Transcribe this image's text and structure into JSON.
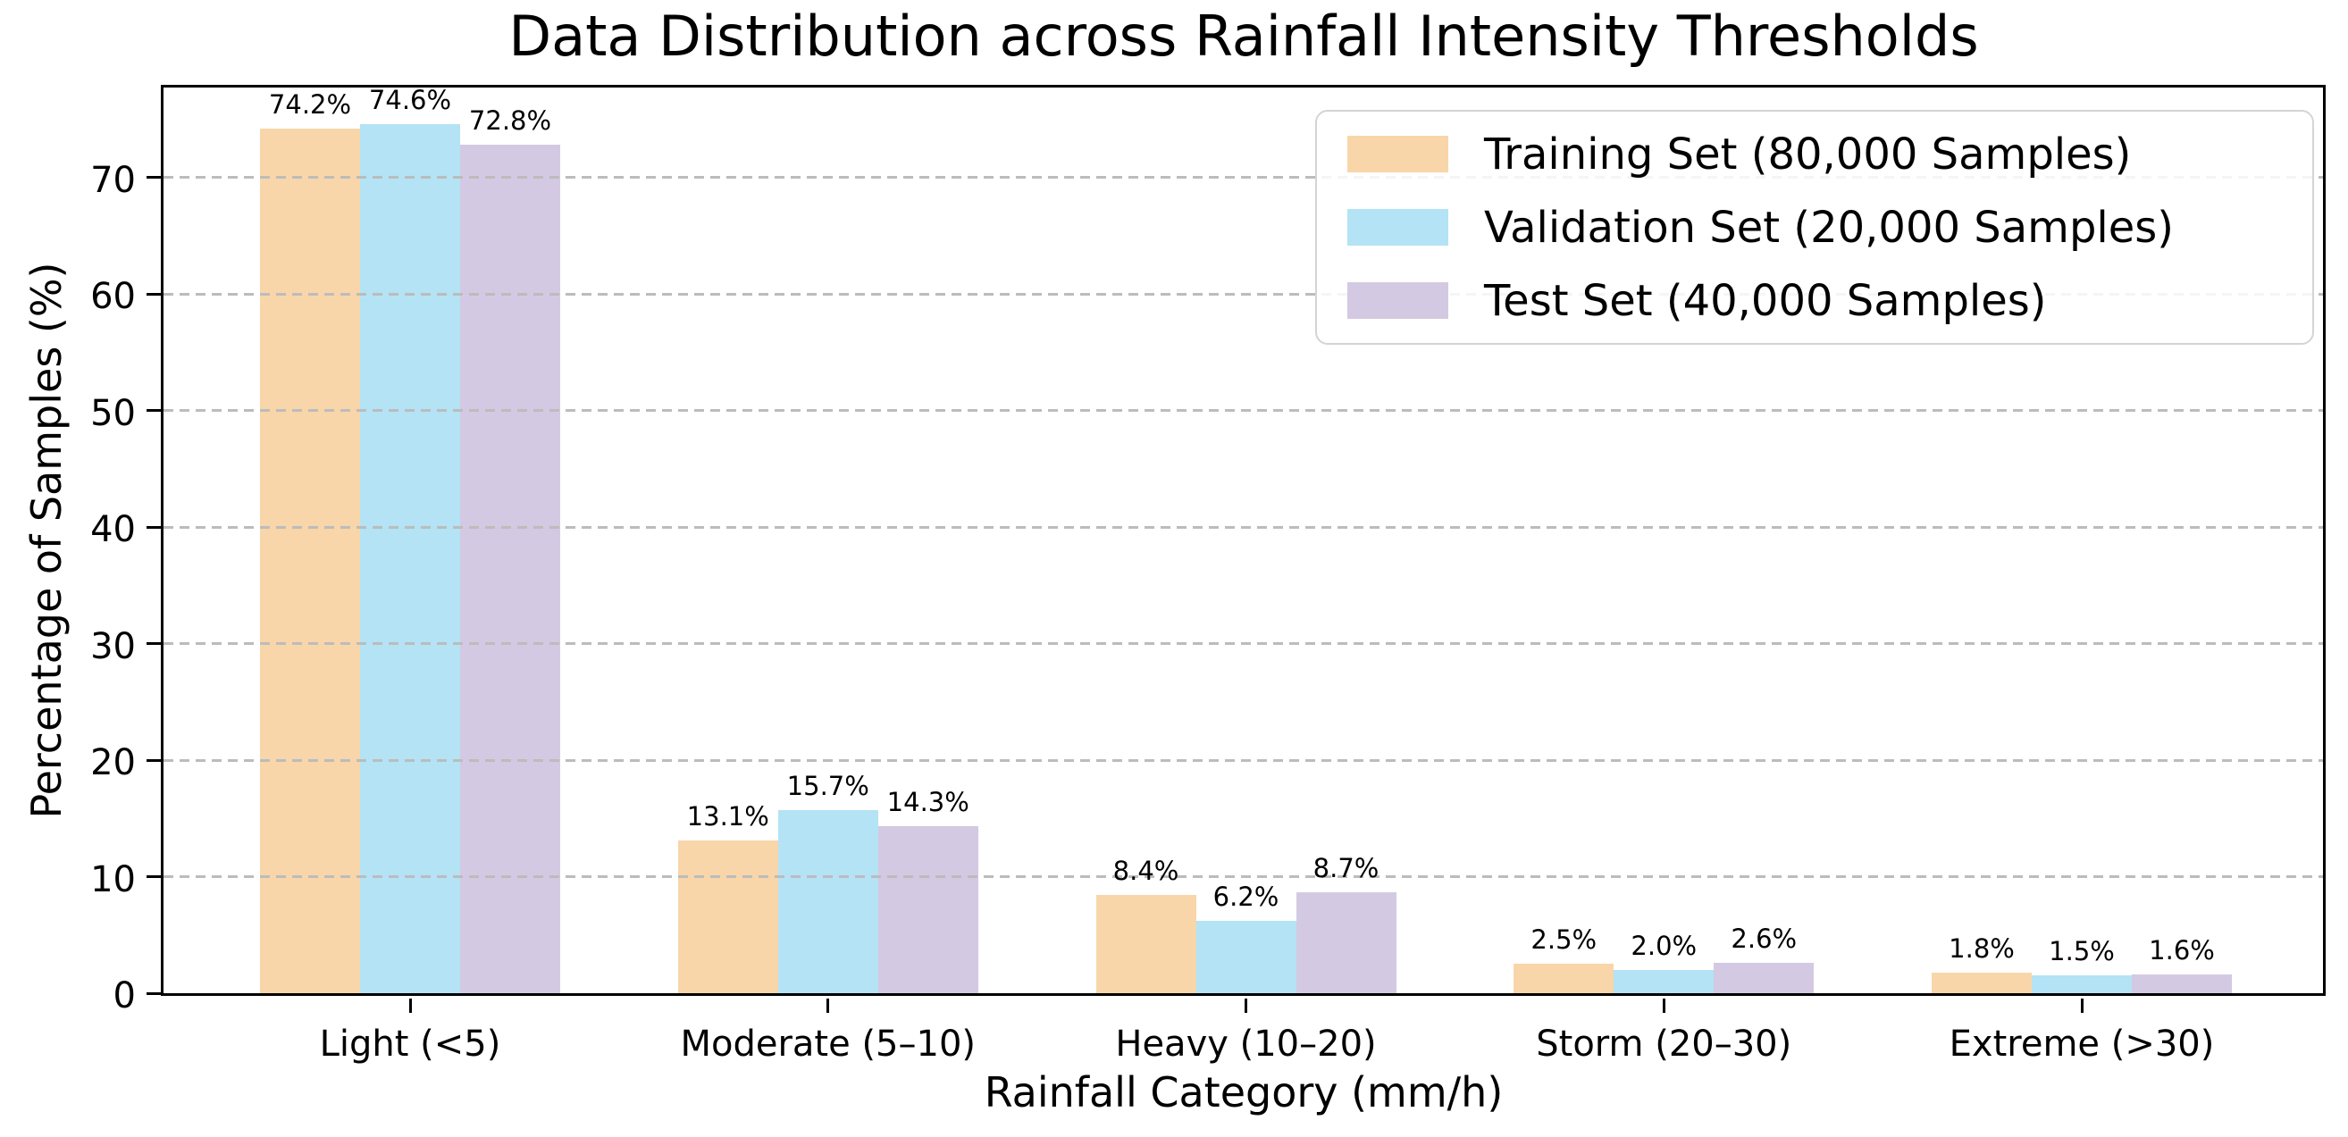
{
  "chart_data": {
    "type": "bar",
    "title": "Data Distribution across Rainfall Intensity Thresholds",
    "xlabel": "Rainfall Category (mm/h)",
    "ylabel": "Percentage of Samples (%)",
    "categories": [
      "Light (<5)",
      "Moderate (5–10)",
      "Heavy (10–20)",
      "Storm (20–30)",
      "Extreme (>30)"
    ],
    "series": [
      {
        "name": "Training Set (80,000 Samples)",
        "color": "#F8D6A9",
        "values": [
          74.2,
          13.1,
          8.4,
          2.5,
          1.8
        ]
      },
      {
        "name": "Validation Set (20,000 Samples)",
        "color": "#B3E3F5",
        "values": [
          74.6,
          15.7,
          6.2,
          2.0,
          1.5
        ]
      },
      {
        "name": "Test Set (40,000 Samples)",
        "color": "#D4C9E2",
        "values": [
          72.8,
          14.3,
          8.7,
          2.6,
          1.6
        ]
      }
    ],
    "value_labels": [
      [
        "74.2%",
        "13.1%",
        "8.4%",
        "2.5%",
        "1.8%"
      ],
      [
        "74.6%",
        "15.7%",
        "6.2%",
        "2.0%",
        "1.5%"
      ],
      [
        "72.8%",
        "14.3%",
        "8.7%",
        "2.6%",
        "1.6%"
      ]
    ],
    "y_ticks": [
      0,
      10,
      20,
      30,
      40,
      50,
      60,
      70
    ],
    "ylim": [
      0,
      78.2
    ],
    "grid": "horizontal-dashed",
    "grid_color": "#bcbcbc",
    "legend_position": "upper-right",
    "axis_color": "#000000",
    "background_color": "#ffffff"
  }
}
